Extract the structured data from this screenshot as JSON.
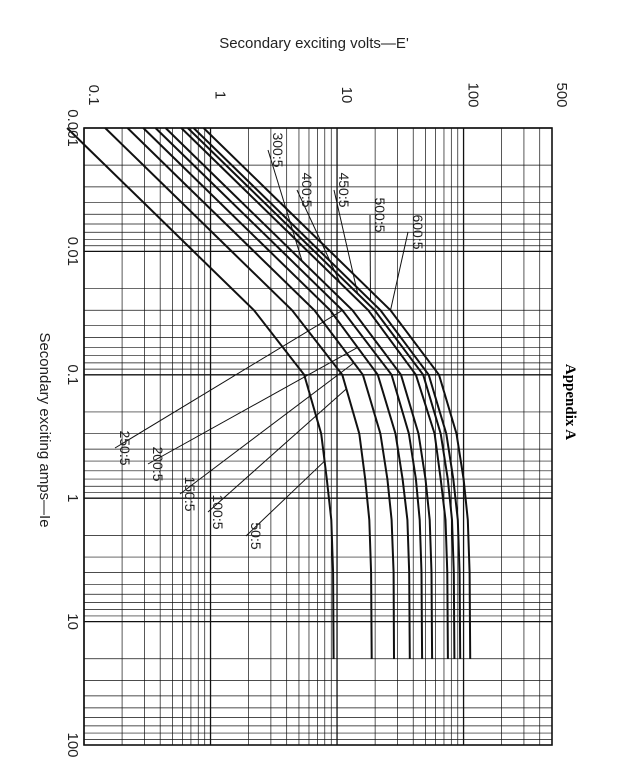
{
  "page": {
    "side_label": "Appendix A"
  },
  "chart_data": {
    "type": "line",
    "title": "",
    "xlabel": "Secondary exciting amps—Ie",
    "ylabel": "Secondary exciting volts—E'",
    "x_scale": "log",
    "y_scale": "log",
    "xlim": [
      0.001,
      100
    ],
    "ylim": [
      0.1,
      500
    ],
    "x_ticks": [
      {
        "value": 0.001,
        "label": "0.001"
      },
      {
        "value": 0.01,
        "label": "0.01"
      },
      {
        "value": 0.1,
        "label": "0.1"
      },
      {
        "value": 1,
        "label": "1"
      },
      {
        "value": 10,
        "label": "10"
      },
      {
        "value": 100,
        "label": "100"
      }
    ],
    "y_ticks": [
      {
        "value": 0.1,
        "label": "0.1"
      },
      {
        "value": 1,
        "label": "1"
      },
      {
        "value": 10,
        "label": "10"
      },
      {
        "value": 100,
        "label": "100"
      },
      {
        "value": 500,
        "label": "500"
      }
    ],
    "grid": true,
    "orientation": "rotated-90-clockwise",
    "series": [
      {
        "name": "50:5",
        "knee_volts": 8.5,
        "end_amps": 20,
        "curve_points": [
          [
            0.001,
            0.0735
          ],
          [
            0.003,
            0.2206
          ],
          [
            0.01,
            0.735
          ],
          [
            0.03,
            2.206
          ],
          [
            0.1,
            5.5
          ],
          [
            0.3,
            7.5
          ],
          [
            0.7,
            8.3
          ],
          [
            1.5,
            9.0
          ],
          [
            4,
            9.3
          ],
          [
            20,
            9.4
          ]
        ]
      },
      {
        "name": "100:5",
        "knee_volts": 17,
        "end_amps": 20,
        "curve_points": [
          [
            0.001,
            0.147
          ],
          [
            0.003,
            0.4412
          ],
          [
            0.01,
            1.47
          ],
          [
            0.03,
            4.412
          ],
          [
            0.1,
            11
          ],
          [
            0.3,
            15
          ],
          [
            0.7,
            16.7
          ],
          [
            1.5,
            18
          ],
          [
            4,
            18.6
          ],
          [
            20,
            18.8
          ]
        ]
      },
      {
        "name": "150:5",
        "knee_volts": 26,
        "end_amps": 20,
        "curve_points": [
          [
            0.001,
            0.2206
          ],
          [
            0.003,
            0.6618
          ],
          [
            0.01,
            2.206
          ],
          [
            0.03,
            6.618
          ],
          [
            0.1,
            16
          ],
          [
            0.3,
            22
          ],
          [
            0.7,
            25
          ],
          [
            1.5,
            27
          ],
          [
            4,
            28
          ],
          [
            20,
            28.2
          ]
        ]
      },
      {
        "name": "200:5",
        "knee_volts": 34,
        "end_amps": 20,
        "curve_points": [
          [
            0.001,
            0.294
          ],
          [
            0.003,
            0.8824
          ],
          [
            0.01,
            2.94
          ],
          [
            0.03,
            8.824
          ],
          [
            0.1,
            21
          ],
          [
            0.3,
            29
          ],
          [
            0.7,
            33
          ],
          [
            1.5,
            36
          ],
          [
            4,
            37.2
          ],
          [
            20,
            37.6
          ]
        ]
      },
      {
        "name": "250:5",
        "knee_volts": 43,
        "end_amps": 20,
        "curve_points": [
          [
            0.001,
            0.3676
          ],
          [
            0.003,
            1.103
          ],
          [
            0.01,
            3.676
          ],
          [
            0.03,
            11.03
          ],
          [
            0.1,
            27
          ],
          [
            0.3,
            37
          ],
          [
            0.7,
            42
          ],
          [
            1.5,
            45
          ],
          [
            4,
            46.5
          ],
          [
            20,
            47
          ]
        ]
      },
      {
        "name": "300:5",
        "knee_volts": 51,
        "end_amps": 20,
        "curve_points": [
          [
            0.001,
            0.4412
          ],
          [
            0.003,
            1.324
          ],
          [
            0.01,
            4.412
          ],
          [
            0.03,
            13.24
          ],
          [
            0.1,
            32
          ],
          [
            0.3,
            44
          ],
          [
            0.7,
            50
          ],
          [
            1.5,
            54
          ],
          [
            4,
            55.8
          ],
          [
            20,
            56.4
          ]
        ]
      },
      {
        "name": "400:5",
        "knee_volts": 68,
        "end_amps": 20,
        "curve_points": [
          [
            0.001,
            0.588
          ],
          [
            0.003,
            1.765
          ],
          [
            0.01,
            5.88
          ],
          [
            0.03,
            17.65
          ],
          [
            0.1,
            42
          ],
          [
            0.3,
            59
          ],
          [
            0.7,
            66
          ],
          [
            1.5,
            72
          ],
          [
            4,
            74.4
          ],
          [
            20,
            75.2
          ]
        ]
      },
      {
        "name": "450:5",
        "knee_volts": 77,
        "end_amps": 20,
        "curve_points": [
          [
            0.001,
            0.6618
          ],
          [
            0.003,
            1.985
          ],
          [
            0.01,
            6.618
          ],
          [
            0.03,
            19.85
          ],
          [
            0.1,
            48
          ],
          [
            0.3,
            66
          ],
          [
            0.7,
            75
          ],
          [
            1.5,
            81
          ],
          [
            4,
            83.7
          ],
          [
            20,
            84.6
          ]
        ]
      },
      {
        "name": "500:5",
        "knee_volts": 85,
        "end_amps": 20,
        "curve_points": [
          [
            0.001,
            0.7353
          ],
          [
            0.003,
            2.206
          ],
          [
            0.01,
            7.353
          ],
          [
            0.03,
            22.06
          ],
          [
            0.1,
            53
          ],
          [
            0.3,
            73
          ],
          [
            0.7,
            83
          ],
          [
            1.5,
            90
          ],
          [
            4,
            93
          ],
          [
            20,
            94
          ]
        ]
      },
      {
        "name": "600:5",
        "knee_volts": 102,
        "end_amps": 20,
        "curve_points": [
          [
            0.001,
            0.8824
          ],
          [
            0.003,
            2.647
          ],
          [
            0.01,
            8.824
          ],
          [
            0.03,
            26.47
          ],
          [
            0.1,
            64
          ],
          [
            0.3,
            88
          ],
          [
            0.7,
            100
          ],
          [
            1.5,
            108
          ],
          [
            4,
            111.6
          ],
          [
            20,
            112.8
          ]
        ]
      }
    ],
    "annotations": [
      {
        "text": "300:5",
        "points_to": "300:5"
      },
      {
        "text": "400:5",
        "points_to": "400:5"
      },
      {
        "text": "450:5",
        "points_to": "450:5"
      },
      {
        "text": "500:5",
        "points_to": "500:5"
      },
      {
        "text": "600:5",
        "points_to": "600:5"
      },
      {
        "text": "250:5",
        "points_to": "250:5"
      },
      {
        "text": "200:5",
        "points_to": "200:5"
      },
      {
        "text": "150:5",
        "points_to": "150:5"
      },
      {
        "text": "100:5",
        "points_to": "100:5"
      },
      {
        "text": "50:5",
        "points_to": "50:5"
      }
    ]
  }
}
